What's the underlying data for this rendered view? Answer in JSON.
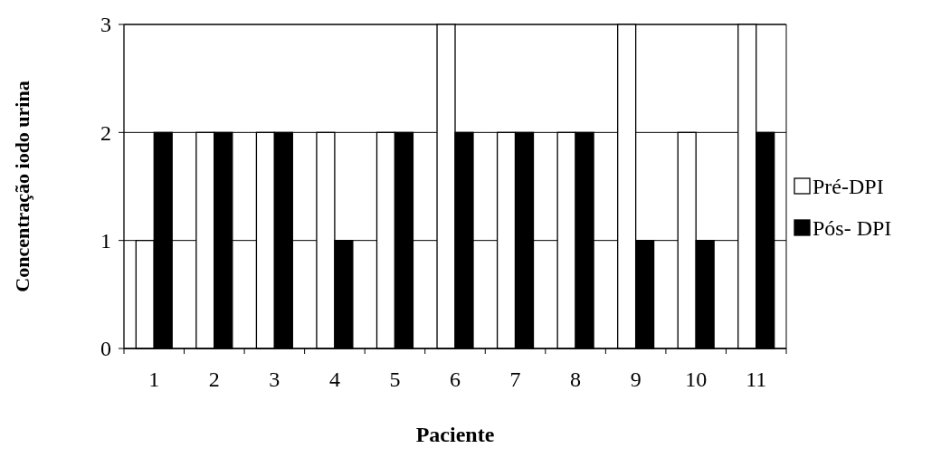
{
  "chart_data": {
    "type": "bar",
    "xlabel": "Paciente",
    "ylabel": "Concentração iodo urina",
    "categories": [
      "1",
      "2",
      "3",
      "4",
      "5",
      "6",
      "7",
      "8",
      "9",
      "10",
      "11"
    ],
    "series": [
      {
        "name": "Pré-DPI",
        "color": "#ffffff",
        "values": [
          1,
          2,
          2,
          2,
          2,
          3,
          2,
          2,
          3,
          2,
          3
        ]
      },
      {
        "name": "Pós- DPI",
        "color": "#000000",
        "values": [
          2,
          2,
          2,
          1,
          2,
          2,
          2,
          2,
          1,
          1,
          2
        ]
      }
    ],
    "ylim": [
      0,
      3
    ],
    "yticks": [
      0,
      1,
      2,
      3
    ],
    "grid": "y",
    "legend": "right"
  }
}
